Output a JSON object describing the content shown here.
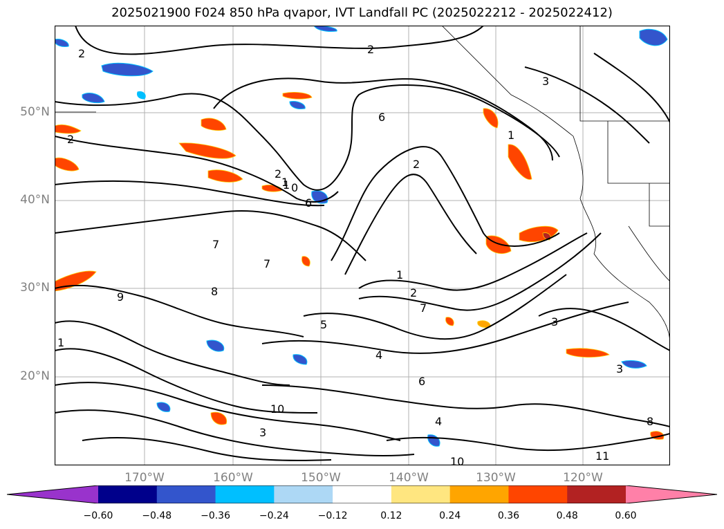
{
  "title": "2025021900 F024 850 hPa qvapor, IVT Landfall PC (2025022212 - 2025022412)",
  "map": {
    "latitudes": [
      "50°N",
      "40°N",
      "30°N",
      "20°N"
    ],
    "longitudes": [
      "170°W",
      "160°W",
      "150°W",
      "140°W",
      "130°W",
      "120°W"
    ],
    "contour_labels": [
      "2",
      "2",
      "3",
      "6",
      "1",
      "2",
      "1",
      "2",
      "1",
      "0",
      "6",
      "7",
      "7",
      "1",
      "2",
      "7",
      "9",
      "8",
      "1",
      "5",
      "4",
      "3",
      "6",
      "10",
      "10",
      "3",
      "4",
      "11",
      "3",
      "8",
      "2"
    ]
  },
  "colorbar": {
    "ticks": [
      "−0.60",
      "−0.48",
      "−0.36",
      "−0.24",
      "−0.12",
      "0.12",
      "0.24",
      "0.36",
      "0.48",
      "0.60"
    ],
    "colors": [
      "#9933cc",
      "#00008b",
      "#3355cc",
      "#00bfff",
      "#add8f5",
      "#ffffff",
      "#ffe680",
      "#ffa500",
      "#ff4500",
      "#b22222",
      "#ff80a8"
    ]
  }
}
